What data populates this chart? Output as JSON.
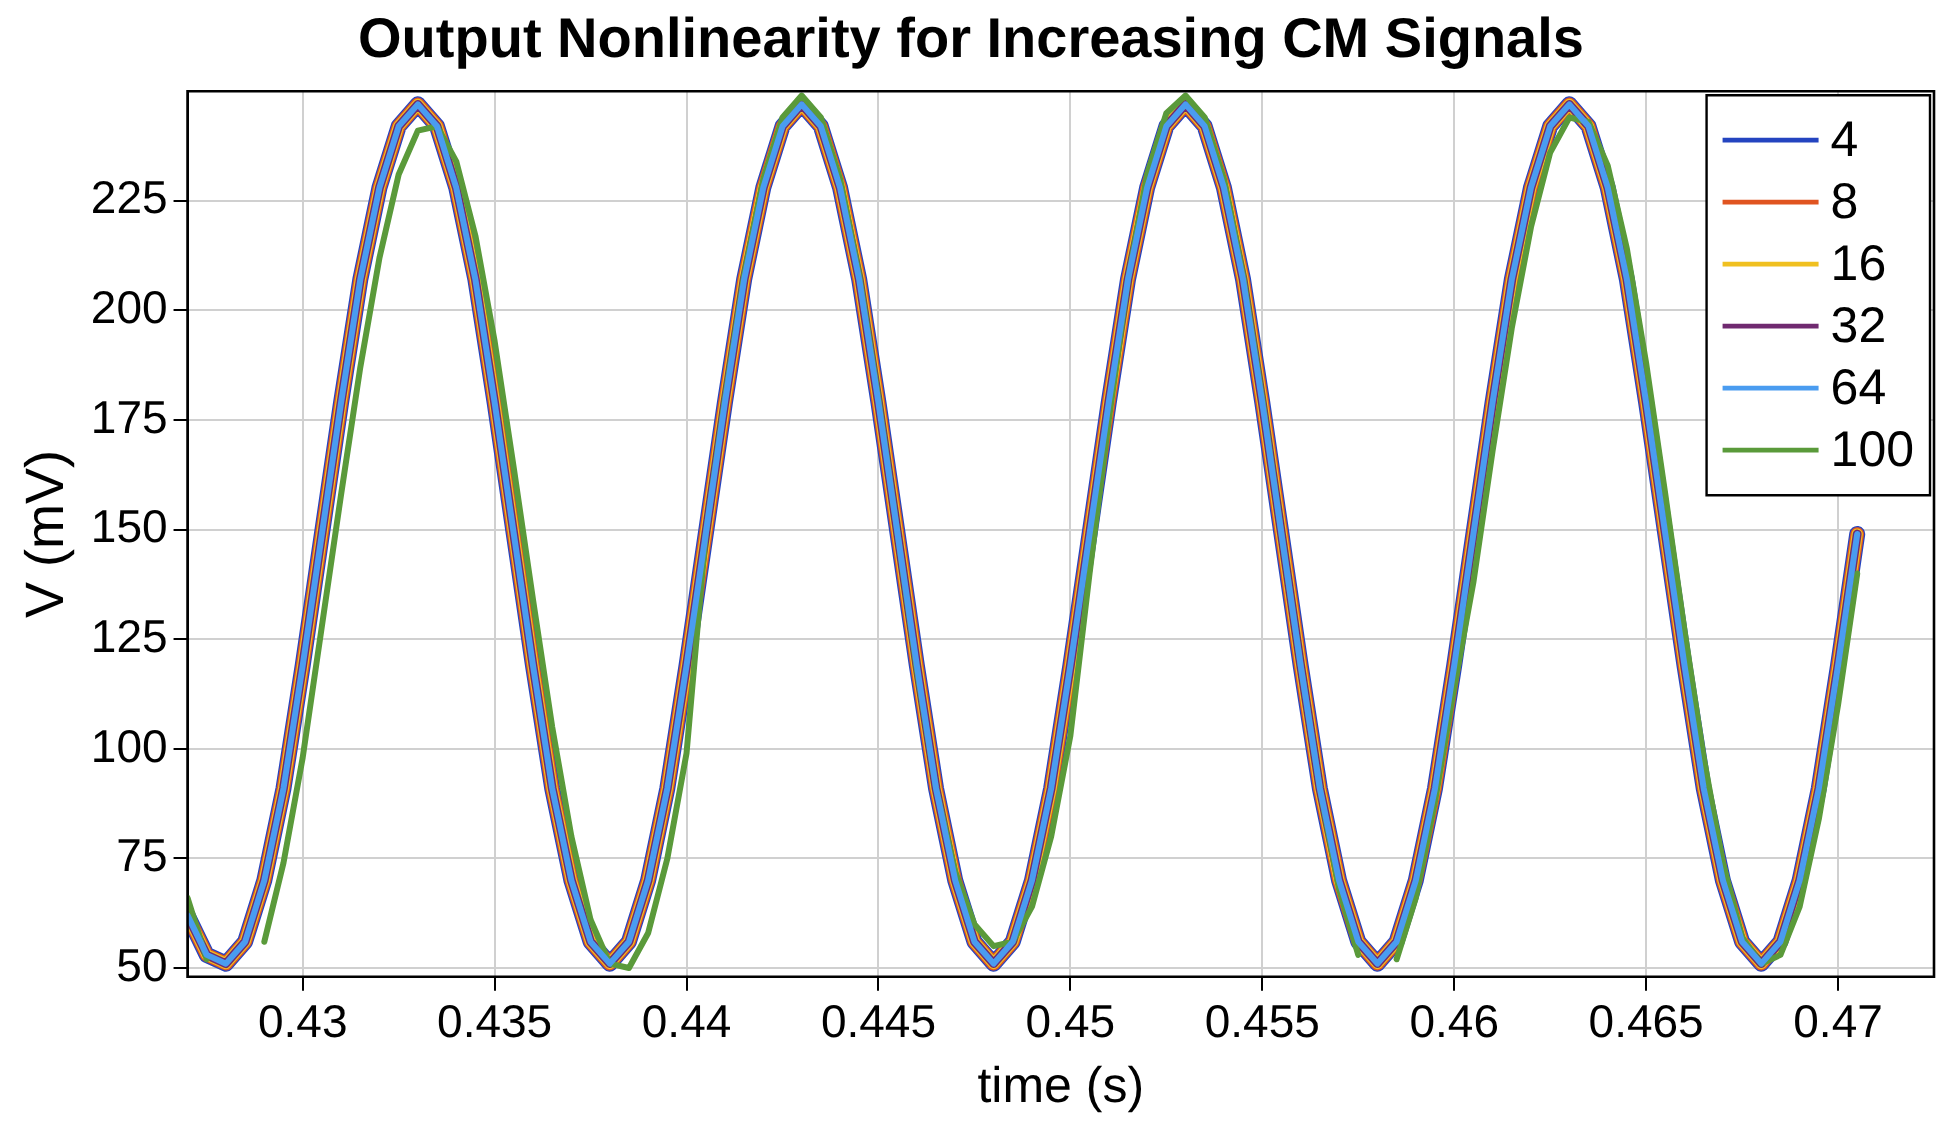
{
  "chart_data": {
    "type": "line",
    "title": "Output Nonlinearity for Increasing CM Signals",
    "xlabel": "time (s)",
    "ylabel": "V (mV)",
    "x": [
      0.427,
      0.4275,
      0.428,
      0.4285,
      0.429,
      0.4295,
      0.43,
      0.4305,
      0.431,
      0.4315,
      0.432,
      0.4325,
      0.433,
      0.4335,
      0.434,
      0.4345,
      0.435,
      0.4355,
      0.436,
      0.4365,
      0.437,
      0.4375,
      0.438,
      0.4385,
      0.439,
      0.4395,
      0.44,
      0.4405,
      0.441,
      0.4415,
      0.442,
      0.4425,
      0.443,
      0.4435,
      0.444,
      0.4445,
      0.445,
      0.4455,
      0.446,
      0.4465,
      0.447,
      0.4475,
      0.448,
      0.4485,
      0.449,
      0.4495,
      0.45,
      0.4505,
      0.451,
      0.4515,
      0.452,
      0.4525,
      0.453,
      0.4535,
      0.454,
      0.4545,
      0.455,
      0.4555,
      0.456,
      0.4565,
      0.457,
      0.4575,
      0.458,
      0.4585,
      0.459,
      0.4595,
      0.46,
      0.4605,
      0.461,
      0.4615,
      0.462,
      0.4625,
      0.463,
      0.4635,
      0.464,
      0.4645,
      0.465,
      0.4655,
      0.466,
      0.4665,
      0.467,
      0.4675,
      0.468,
      0.4685,
      0.469,
      0.4695,
      0.47,
      0.4705
    ],
    "series": [
      {
        "name": "4",
        "color": "#2444c0",
        "values": [
          62,
          53,
          51,
          56,
          70,
          91,
          119,
          149,
          179,
          207,
          228,
          242,
          247,
          242,
          228,
          207,
          179,
          149,
          119,
          91,
          70,
          56,
          51,
          56,
          70,
          91,
          119,
          149,
          179,
          207,
          228,
          242,
          247,
          242,
          228,
          207,
          179,
          149,
          119,
          91,
          70,
          56,
          51,
          56,
          70,
          91,
          119,
          149,
          179,
          207,
          228,
          242,
          247,
          242,
          228,
          207,
          179,
          149,
          119,
          91,
          70,
          56,
          51,
          56,
          70,
          91,
          119,
          149,
          179,
          207,
          228,
          242,
          247,
          242,
          228,
          207,
          179,
          149,
          119,
          91,
          70,
          56,
          51,
          56,
          70,
          91,
          119,
          149
        ]
      },
      {
        "name": "8",
        "color": "#e05420",
        "values": [
          62,
          53,
          51,
          56,
          70,
          91,
          119,
          149,
          179,
          207,
          228,
          242,
          247,
          242,
          228,
          207,
          179,
          149,
          119,
          91,
          70,
          56,
          51,
          56,
          70,
          91,
          119,
          149,
          179,
          207,
          228,
          242,
          247,
          242,
          228,
          207,
          179,
          149,
          119,
          91,
          70,
          56,
          51,
          56,
          70,
          91,
          119,
          149,
          179,
          207,
          228,
          242,
          247,
          242,
          228,
          207,
          179,
          149,
          119,
          91,
          70,
          56,
          51,
          56,
          70,
          91,
          119,
          149,
          179,
          207,
          228,
          242,
          247,
          242,
          228,
          207,
          179,
          149,
          119,
          91,
          70,
          56,
          51,
          56,
          70,
          91,
          119,
          149
        ]
      },
      {
        "name": "16",
        "color": "#f0c020",
        "values": [
          62,
          53,
          51,
          56,
          70,
          91,
          119,
          149,
          179,
          207,
          228,
          242,
          247,
          242,
          228,
          207,
          179,
          149,
          119,
          91,
          70,
          56,
          51,
          56,
          70,
          91,
          119,
          149,
          179,
          207,
          228,
          242,
          247,
          242,
          228,
          207,
          179,
          149,
          119,
          91,
          70,
          56,
          51,
          56,
          70,
          91,
          119,
          149,
          179,
          207,
          228,
          242,
          247,
          242,
          228,
          207,
          179,
          149,
          119,
          91,
          70,
          56,
          51,
          56,
          70,
          91,
          119,
          149,
          179,
          207,
          228,
          242,
          247,
          242,
          228,
          207,
          179,
          149,
          119,
          91,
          70,
          56,
          51,
          56,
          70,
          91,
          119,
          149
        ]
      },
      {
        "name": "32",
        "color": "#702a70",
        "values": [
          62,
          53,
          51,
          56,
          70,
          91,
          119,
          149,
          179,
          207,
          228,
          242,
          247,
          242,
          228,
          207,
          179,
          149,
          119,
          91,
          70,
          56,
          51,
          56,
          70,
          91,
          119,
          149,
          179,
          207,
          228,
          242,
          247,
          242,
          228,
          207,
          179,
          149,
          119,
          91,
          70,
          56,
          51,
          56,
          70,
          91,
          119,
          149,
          179,
          207,
          228,
          242,
          247,
          242,
          228,
          207,
          179,
          149,
          119,
          91,
          70,
          56,
          51,
          56,
          70,
          91,
          119,
          149,
          179,
          207,
          228,
          242,
          247,
          242,
          228,
          207,
          179,
          149,
          119,
          91,
          70,
          56,
          51,
          56,
          70,
          91,
          119,
          149
        ]
      },
      {
        "name": "64",
        "color": "#4a9cf0",
        "values": [
          62,
          53,
          51,
          56,
          70,
          91,
          119,
          149,
          179,
          207,
          228,
          242,
          247,
          242,
          228,
          207,
          179,
          149,
          119,
          91,
          70,
          56,
          51,
          56,
          70,
          91,
          119,
          149,
          179,
          207,
          228,
          242,
          247,
          242,
          228,
          207,
          179,
          149,
          119,
          91,
          70,
          56,
          51,
          56,
          70,
          91,
          119,
          149,
          179,
          207,
          228,
          242,
          247,
          242,
          228,
          207,
          179,
          149,
          119,
          91,
          70,
          56,
          51,
          56,
          70,
          91,
          119,
          149,
          179,
          207,
          228,
          242,
          247,
          242,
          228,
          207,
          179,
          149,
          119,
          91,
          70,
          56,
          51,
          56,
          70,
          91,
          119,
          149
        ]
      },
      {
        "name": "100",
        "color": "#5a9a3a",
        "values": [
          66,
          52,
          null,
          null,
          56,
          74,
          98,
          128,
          158,
          187,
          212,
          231,
          241,
          242,
          234,
          217,
          193,
          164,
          134,
          105,
          80,
          61,
          51,
          50,
          58,
          75,
          99,
          149,
          180,
          208,
          230,
          244,
          249,
          244,
          230,
          208,
          180,
          149,
          118,
          91,
          72,
          60,
          55,
          56,
          64,
          80,
          103,
          140,
          175,
          207,
          231,
          245,
          249,
          244,
          230,
          208,
          180,
          149,
          119,
          91,
          68,
          53,
          null,
          52,
          66,
          88,
          114,
          138,
          168,
          196,
          219,
          236,
          244,
          243,
          233,
          214,
          188,
          158,
          127,
          98,
          74,
          57,
          51,
          53,
          64,
          84,
          110,
          140
        ]
      }
    ],
    "xlim": [
      0.427,
      0.4725
    ],
    "xticks": [
      {
        "value": 0.43,
        "label": "0.43"
      },
      {
        "value": 0.435,
        "label": "0.435"
      },
      {
        "value": 0.44,
        "label": "0.44"
      },
      {
        "value": 0.445,
        "label": "0.445"
      },
      {
        "value": 0.45,
        "label": "0.45"
      },
      {
        "value": 0.455,
        "label": "0.455"
      },
      {
        "value": 0.46,
        "label": "0.46"
      },
      {
        "value": 0.465,
        "label": "0.465"
      },
      {
        "value": 0.47,
        "label": "0.47"
      }
    ],
    "ylim": [
      48,
      250
    ],
    "yticks": [
      50,
      75,
      100,
      125,
      150,
      175,
      200,
      225
    ],
    "grid": true,
    "legend": "top right",
    "marker": "none",
    "line_style": "solid"
  }
}
